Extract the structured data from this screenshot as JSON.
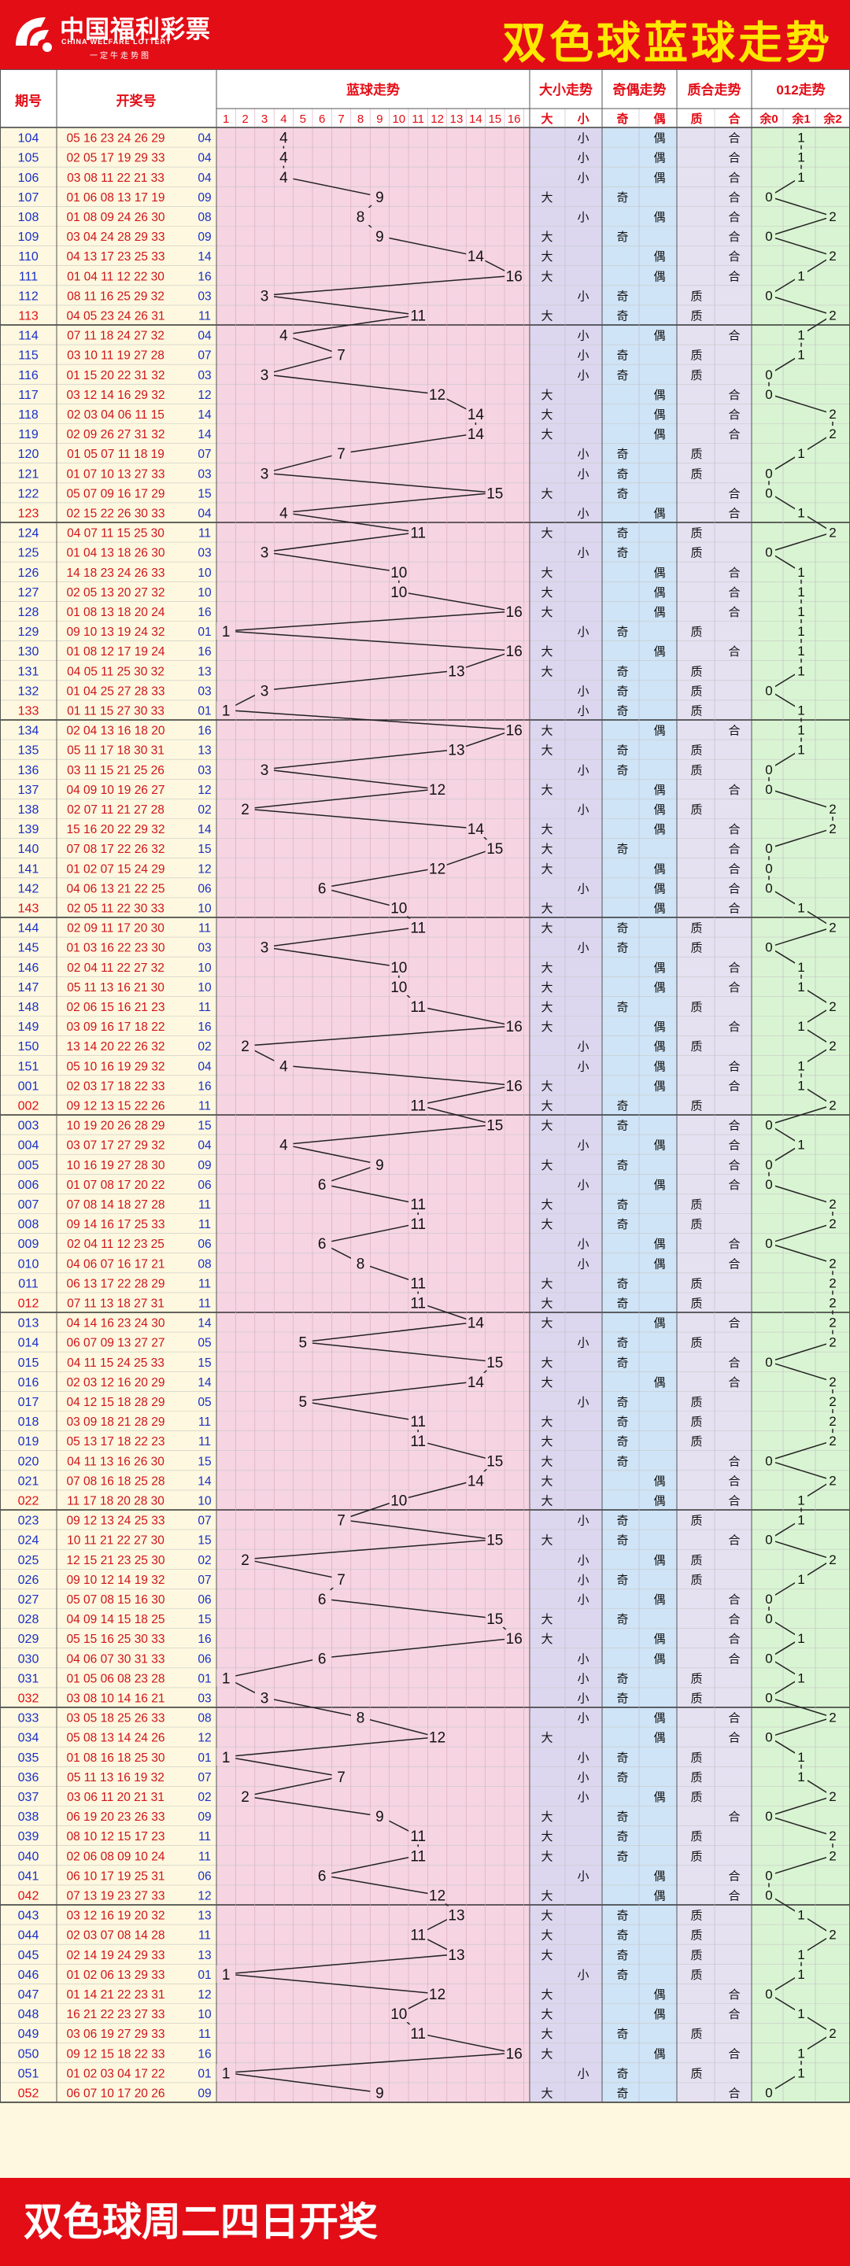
{
  "header": {
    "logo_text": "中国福利彩票",
    "logo_en": "CHINA WELFARE LOTTERY",
    "logo_sub": "一定牛走势图",
    "title": "双色球蓝球走势"
  },
  "footer": {
    "text": "双色球周二四日开奖"
  },
  "columns": {
    "period": "期号",
    "numbers": "开奖号",
    "blue_trend": "蓝球走势",
    "size": "大小走势",
    "parity": "奇偶走势",
    "prime": "质合走势",
    "mod3": "012走势"
  },
  "subheaders": {
    "blue": [
      "1",
      "2",
      "3",
      "4",
      "5",
      "6",
      "7",
      "8",
      "9",
      "10",
      "11",
      "12",
      "13",
      "14",
      "15",
      "16"
    ],
    "size": [
      "大",
      "小"
    ],
    "parity": [
      "奇",
      "偶"
    ],
    "prime": [
      "质",
      "合"
    ],
    "mod3": [
      "余0",
      "余1",
      "余2"
    ]
  },
  "colors": {
    "brand_red": "#e30d16",
    "title_yellow": "#ffe800",
    "blue_numbers": "#1a2fc8",
    "red_numbers": "#d0131a",
    "blue_zone": "#f6d4e2",
    "size_zone": "#dcd7ef",
    "parity_zone": "#cfe4f6",
    "prime_zone": "#e5e1f1",
    "mod3_zone": "#d9f4d2"
  },
  "chart_data": {
    "type": "table",
    "title": "双色球蓝球走势",
    "blue_ball_range": [
      1,
      16
    ],
    "rows": [
      {
        "period": "104",
        "red": "05 16 23 24 26 29",
        "blue": "04",
        "size": "小",
        "parity": "偶",
        "prime": "合",
        "mod3": "1"
      },
      {
        "period": "105",
        "red": "02 05 17 19 29 33",
        "blue": "04",
        "size": "小",
        "parity": "偶",
        "prime": "合",
        "mod3": "1"
      },
      {
        "period": "106",
        "red": "03 08 11 22 21 33",
        "blue": "04",
        "size": "小",
        "parity": "偶",
        "prime": "合",
        "mod3": "1"
      },
      {
        "period": "107",
        "red": "01 06 08 13 17 19",
        "blue": "09",
        "size": "大",
        "parity": "奇",
        "prime": "合",
        "mod3": "0"
      },
      {
        "period": "108",
        "red": "01 08 09 24 26 30",
        "blue": "08",
        "size": "小",
        "parity": "偶",
        "prime": "合",
        "mod3": "2"
      },
      {
        "period": "109",
        "red": "03 04 24 28 29 33",
        "blue": "09",
        "size": "大",
        "parity": "奇",
        "prime": "合",
        "mod3": "0"
      },
      {
        "period": "110",
        "red": "04 13 17 23 25 33",
        "blue": "14",
        "size": "大",
        "parity": "偶",
        "prime": "合",
        "mod3": "2"
      },
      {
        "period": "111",
        "red": "01 04 11 12 22 30",
        "blue": "16",
        "size": "大",
        "parity": "偶",
        "prime": "合",
        "mod3": "1"
      },
      {
        "period": "112",
        "red": "08 11 16 25 29 32",
        "blue": "03",
        "size": "小",
        "parity": "奇",
        "prime": "质",
        "mod3": "0"
      },
      {
        "period": "113",
        "red": "04 05 23 24 26 31",
        "blue": "11",
        "size": "大",
        "parity": "奇",
        "prime": "质",
        "mod3": "2"
      },
      {
        "period": "114",
        "red": "07 11 18 24 27 32",
        "blue": "04",
        "size": "小",
        "parity": "偶",
        "prime": "合",
        "mod3": "1"
      },
      {
        "period": "115",
        "red": "03 10 11 19 27 28",
        "blue": "07",
        "size": "小",
        "parity": "奇",
        "prime": "质",
        "mod3": "1"
      },
      {
        "period": "116",
        "red": "01 15 20 22 31 32",
        "blue": "03",
        "size": "小",
        "parity": "奇",
        "prime": "质",
        "mod3": "0"
      },
      {
        "period": "117",
        "red": "03 12 14 16 29 32",
        "blue": "12",
        "size": "大",
        "parity": "偶",
        "prime": "合",
        "mod3": "0"
      },
      {
        "period": "118",
        "red": "02 03 04 06 11 15",
        "blue": "14",
        "size": "大",
        "parity": "偶",
        "prime": "合",
        "mod3": "2"
      },
      {
        "period": "119",
        "red": "02 09 26 27 31 32",
        "blue": "14",
        "size": "大",
        "parity": "偶",
        "prime": "合",
        "mod3": "2"
      },
      {
        "period": "120",
        "red": "01 05 07 11 18 19",
        "blue": "07",
        "size": "小",
        "parity": "奇",
        "prime": "质",
        "mod3": "1"
      },
      {
        "period": "121",
        "red": "01 07 10 13 27 33",
        "blue": "03",
        "size": "小",
        "parity": "奇",
        "prime": "质",
        "mod3": "0"
      },
      {
        "period": "122",
        "red": "05 07 09 16 17 29",
        "blue": "15",
        "size": "大",
        "parity": "奇",
        "prime": "合",
        "mod3": "0"
      },
      {
        "period": "123",
        "red": "02 15 22 26 30 33",
        "blue": "04",
        "size": "小",
        "parity": "偶",
        "prime": "合",
        "mod3": "1"
      },
      {
        "period": "124",
        "red": "04 07 11 15 25 30",
        "blue": "11",
        "size": "大",
        "parity": "奇",
        "prime": "质",
        "mod3": "2"
      },
      {
        "period": "125",
        "red": "01 04 13 18 26 30",
        "blue": "03",
        "size": "小",
        "parity": "奇",
        "prime": "质",
        "mod3": "0"
      },
      {
        "period": "126",
        "red": "14 18 23 24 26 33",
        "blue": "10",
        "size": "大",
        "parity": "偶",
        "prime": "合",
        "mod3": "1"
      },
      {
        "period": "127",
        "red": "02 05 13 20 27 32",
        "blue": "10",
        "size": "大",
        "parity": "偶",
        "prime": "合",
        "mod3": "1"
      },
      {
        "period": "128",
        "red": "01 08 13 18 20 24",
        "blue": "16",
        "size": "大",
        "parity": "偶",
        "prime": "合",
        "mod3": "1"
      },
      {
        "period": "129",
        "red": "09 10 13 19 24 32",
        "blue": "01",
        "size": "小",
        "parity": "奇",
        "prime": "质",
        "mod3": "1"
      },
      {
        "period": "130",
        "red": "01 08 12 17 19 24",
        "blue": "16",
        "size": "大",
        "parity": "偶",
        "prime": "合",
        "mod3": "1"
      },
      {
        "period": "131",
        "red": "04 05 11 25 30 32",
        "blue": "13",
        "size": "大",
        "parity": "奇",
        "prime": "质",
        "mod3": "1"
      },
      {
        "period": "132",
        "red": "01 04 25 27 28 33",
        "blue": "03",
        "size": "小",
        "parity": "奇",
        "prime": "质",
        "mod3": "0"
      },
      {
        "period": "133",
        "red": "01 11 15 27 30 33",
        "blue": "01",
        "size": "小",
        "parity": "奇",
        "prime": "质",
        "mod3": "1"
      },
      {
        "period": "134",
        "red": "02 04 13 16 18 20",
        "blue": "16",
        "size": "大",
        "parity": "偶",
        "prime": "合",
        "mod3": "1"
      },
      {
        "period": "135",
        "red": "05 11 17 18 30 31",
        "blue": "13",
        "size": "大",
        "parity": "奇",
        "prime": "质",
        "mod3": "1"
      },
      {
        "period": "136",
        "red": "03 11 15 21 25 26",
        "blue": "03",
        "size": "小",
        "parity": "奇",
        "prime": "质",
        "mod3": "0"
      },
      {
        "period": "137",
        "red": "04 09 10 19 26 27",
        "blue": "12",
        "size": "大",
        "parity": "偶",
        "prime": "合",
        "mod3": "0"
      },
      {
        "period": "138",
        "red": "02 07 11 21 27 28",
        "blue": "02",
        "size": "小",
        "parity": "偶",
        "prime": "质",
        "mod3": "2"
      },
      {
        "period": "139",
        "red": "15 16 20 22 29 32",
        "blue": "14",
        "size": "大",
        "parity": "偶",
        "prime": "合",
        "mod3": "2"
      },
      {
        "period": "140",
        "red": "07 08 17 22 26 32",
        "blue": "15",
        "size": "大",
        "parity": "奇",
        "prime": "合",
        "mod3": "0"
      },
      {
        "period": "141",
        "red": "01 02 07 15 24 29",
        "blue": "12",
        "size": "大",
        "parity": "偶",
        "prime": "合",
        "mod3": "0"
      },
      {
        "period": "142",
        "red": "04 06 13 21 22 25",
        "blue": "06",
        "size": "小",
        "parity": "偶",
        "prime": "合",
        "mod3": "0"
      },
      {
        "period": "143",
        "red": "02 05 11 22 30 33",
        "blue": "10",
        "size": "大",
        "parity": "偶",
        "prime": "合",
        "mod3": "1"
      },
      {
        "period": "144",
        "red": "02 09 11 17 20 30",
        "blue": "11",
        "size": "大",
        "parity": "奇",
        "prime": "质",
        "mod3": "2"
      },
      {
        "period": "145",
        "red": "01 03 16 22 23 30",
        "blue": "03",
        "size": "小",
        "parity": "奇",
        "prime": "质",
        "mod3": "0"
      },
      {
        "period": "146",
        "red": "02 04 11 22 27 32",
        "blue": "10",
        "size": "大",
        "parity": "偶",
        "prime": "合",
        "mod3": "1"
      },
      {
        "period": "147",
        "red": "05 11 13 16 21 30",
        "blue": "10",
        "size": "大",
        "parity": "偶",
        "prime": "合",
        "mod3": "1"
      },
      {
        "period": "148",
        "red": "02 06 15 16 21 23",
        "blue": "11",
        "size": "大",
        "parity": "奇",
        "prime": "质",
        "mod3": "2"
      },
      {
        "period": "149",
        "red": "03 09 16 17 18 22",
        "blue": "16",
        "size": "大",
        "parity": "偶",
        "prime": "合",
        "mod3": "1"
      },
      {
        "period": "150",
        "red": "13 14 20 22 26 32",
        "blue": "02",
        "size": "小",
        "parity": "偶",
        "prime": "质",
        "mod3": "2"
      },
      {
        "period": "151",
        "red": "05 10 16 19 29 32",
        "blue": "04",
        "size": "小",
        "parity": "偶",
        "prime": "合",
        "mod3": "1"
      },
      {
        "period": "001",
        "red": "02 03 17 18 22 33",
        "blue": "16",
        "size": "大",
        "parity": "偶",
        "prime": "合",
        "mod3": "1"
      },
      {
        "period": "002",
        "red": "09 12 13 15 22 26",
        "blue": "11",
        "size": "大",
        "parity": "奇",
        "prime": "质",
        "mod3": "2"
      },
      {
        "period": "003",
        "red": "10 19 20 26 28 29",
        "blue": "15",
        "size": "大",
        "parity": "奇",
        "prime": "合",
        "mod3": "0"
      },
      {
        "period": "004",
        "red": "03 07 17 27 29 32",
        "blue": "04",
        "size": "小",
        "parity": "偶",
        "prime": "合",
        "mod3": "1"
      },
      {
        "period": "005",
        "red": "10 16 19 27 28 30",
        "blue": "09",
        "size": "大",
        "parity": "奇",
        "prime": "合",
        "mod3": "0"
      },
      {
        "period": "006",
        "red": "01 07 08 17 20 22",
        "blue": "06",
        "size": "小",
        "parity": "偶",
        "prime": "合",
        "mod3": "0"
      },
      {
        "period": "007",
        "red": "07 08 14 18 27 28",
        "blue": "11",
        "size": "大",
        "parity": "奇",
        "prime": "质",
        "mod3": "2"
      },
      {
        "period": "008",
        "red": "09 14 16 17 25 33",
        "blue": "11",
        "size": "大",
        "parity": "奇",
        "prime": "质",
        "mod3": "2"
      },
      {
        "period": "009",
        "red": "02 04 11 12 23 25",
        "blue": "06",
        "size": "小",
        "parity": "偶",
        "prime": "合",
        "mod3": "0"
      },
      {
        "period": "010",
        "red": "04 06 07 16 17 21",
        "blue": "08",
        "size": "小",
        "parity": "偶",
        "prime": "合",
        "mod3": "2"
      },
      {
        "period": "011",
        "red": "06 13 17 22 28 29",
        "blue": "11",
        "size": "大",
        "parity": "奇",
        "prime": "质",
        "mod3": "2"
      },
      {
        "period": "012",
        "red": "07 11 13 18 27 31",
        "blue": "11",
        "size": "大",
        "parity": "奇",
        "prime": "质",
        "mod3": "2"
      },
      {
        "period": "013",
        "red": "04 14 16 23 24 30",
        "blue": "14",
        "size": "大",
        "parity": "偶",
        "prime": "合",
        "mod3": "2"
      },
      {
        "period": "014",
        "red": "06 07 09 13 27 27",
        "blue": "05",
        "size": "小",
        "parity": "奇",
        "prime": "质",
        "mod3": "2"
      },
      {
        "period": "015",
        "red": "04 11 15 24 25 33",
        "blue": "15",
        "size": "大",
        "parity": "奇",
        "prime": "合",
        "mod3": "0"
      },
      {
        "period": "016",
        "red": "02 03 12 16 20 29",
        "blue": "14",
        "size": "大",
        "parity": "偶",
        "prime": "合",
        "mod3": "2"
      },
      {
        "period": "017",
        "red": "04 12 15 18 28 29",
        "blue": "05",
        "size": "小",
        "parity": "奇",
        "prime": "质",
        "mod3": "2"
      },
      {
        "period": "018",
        "red": "03 09 18 21 28 29",
        "blue": "11",
        "size": "大",
        "parity": "奇",
        "prime": "质",
        "mod3": "2"
      },
      {
        "period": "019",
        "red": "05 13 17 18 22 23",
        "blue": "11",
        "size": "大",
        "parity": "奇",
        "prime": "质",
        "mod3": "2"
      },
      {
        "period": "020",
        "red": "04 11 13 16 26 30",
        "blue": "15",
        "size": "大",
        "parity": "奇",
        "prime": "合",
        "mod3": "0"
      },
      {
        "period": "021",
        "red": "07 08 16 18 25 28",
        "blue": "14",
        "size": "大",
        "parity": "偶",
        "prime": "合",
        "mod3": "2"
      },
      {
        "period": "022",
        "red": "11 17 18 20 28 30",
        "blue": "10",
        "size": "大",
        "parity": "偶",
        "prime": "合",
        "mod3": "1"
      },
      {
        "period": "023",
        "red": "09 12 13 24 25 33",
        "blue": "07",
        "size": "小",
        "parity": "奇",
        "prime": "质",
        "mod3": "1"
      },
      {
        "period": "024",
        "red": "10 11 21 22 27 30",
        "blue": "15",
        "size": "大",
        "parity": "奇",
        "prime": "合",
        "mod3": "0"
      },
      {
        "period": "025",
        "red": "12 15 21 23 25 30",
        "blue": "02",
        "size": "小",
        "parity": "偶",
        "prime": "质",
        "mod3": "2"
      },
      {
        "period": "026",
        "red": "09 10 12 14 19 32",
        "blue": "07",
        "size": "小",
        "parity": "奇",
        "prime": "质",
        "mod3": "1"
      },
      {
        "period": "027",
        "red": "05 07 08 15 16 30",
        "blue": "06",
        "size": "小",
        "parity": "偶",
        "prime": "合",
        "mod3": "0"
      },
      {
        "period": "028",
        "red": "04 09 14 15 18 25",
        "blue": "15",
        "size": "大",
        "parity": "奇",
        "prime": "合",
        "mod3": "0"
      },
      {
        "period": "029",
        "red": "05 15 16 25 30 33",
        "blue": "16",
        "size": "大",
        "parity": "偶",
        "prime": "合",
        "mod3": "1"
      },
      {
        "period": "030",
        "red": "04 06 07 30 31 33",
        "blue": "06",
        "size": "小",
        "parity": "偶",
        "prime": "合",
        "mod3": "0"
      },
      {
        "period": "031",
        "red": "01 05 06 08 23 28",
        "blue": "01",
        "size": "小",
        "parity": "奇",
        "prime": "质",
        "mod3": "1"
      },
      {
        "period": "032",
        "red": "03 08 10 14 16 21",
        "blue": "03",
        "size": "小",
        "parity": "奇",
        "prime": "质",
        "mod3": "0"
      },
      {
        "period": "033",
        "red": "03 05 18 25 26 33",
        "blue": "08",
        "size": "小",
        "parity": "偶",
        "prime": "合",
        "mod3": "2"
      },
      {
        "period": "034",
        "red": "05 08 13 14 24 26",
        "blue": "12",
        "size": "大",
        "parity": "偶",
        "prime": "合",
        "mod3": "0"
      },
      {
        "period": "035",
        "red": "01 08 16 18 25 30",
        "blue": "01",
        "size": "小",
        "parity": "奇",
        "prime": "质",
        "mod3": "1"
      },
      {
        "period": "036",
        "red": "05 11 13 16 19 32",
        "blue": "07",
        "size": "小",
        "parity": "奇",
        "prime": "质",
        "mod3": "1"
      },
      {
        "period": "037",
        "red": "03 06 11 20 21 31",
        "blue": "02",
        "size": "小",
        "parity": "偶",
        "prime": "质",
        "mod3": "2"
      },
      {
        "period": "038",
        "red": "06 19 20 23 26 33",
        "blue": "09",
        "size": "大",
        "parity": "奇",
        "prime": "合",
        "mod3": "0"
      },
      {
        "period": "039",
        "red": "08 10 12 15 17 23",
        "blue": "11",
        "size": "大",
        "parity": "奇",
        "prime": "质",
        "mod3": "2"
      },
      {
        "period": "040",
        "red": "02 06 08 09 10 24",
        "blue": "11",
        "size": "大",
        "parity": "奇",
        "prime": "质",
        "mod3": "2"
      },
      {
        "period": "041",
        "red": "06 10 17 19 25 31",
        "blue": "06",
        "size": "小",
        "parity": "偶",
        "prime": "合",
        "mod3": "0"
      },
      {
        "period": "042",
        "red": "07 13 19 23 27 33",
        "blue": "12",
        "size": "大",
        "parity": "偶",
        "prime": "合",
        "mod3": "0"
      },
      {
        "period": "043",
        "red": "03 12 16 19 20 32",
        "blue": "13",
        "size": "大",
        "parity": "奇",
        "prime": "质",
        "mod3": "1"
      },
      {
        "period": "044",
        "red": "02 03 07 08 14 28",
        "blue": "11",
        "size": "大",
        "parity": "奇",
        "prime": "质",
        "mod3": "2"
      },
      {
        "period": "045",
        "red": "02 14 19 24 29 33",
        "blue": "13",
        "size": "大",
        "parity": "奇",
        "prime": "质",
        "mod3": "1"
      },
      {
        "period": "046",
        "red": "01 02 06 13 29 33",
        "blue": "01",
        "size": "小",
        "parity": "奇",
        "prime": "质",
        "mod3": "1"
      },
      {
        "period": "047",
        "red": "01 14 21 22 23 31",
        "blue": "12",
        "size": "大",
        "parity": "偶",
        "prime": "合",
        "mod3": "0"
      },
      {
        "period": "048",
        "red": "16 21 22 23 27 33",
        "blue": "10",
        "size": "大",
        "parity": "偶",
        "prime": "合",
        "mod3": "1"
      },
      {
        "period": "049",
        "red": "03 06 19 27 29 33",
        "blue": "11",
        "size": "大",
        "parity": "奇",
        "prime": "质",
        "mod3": "2"
      },
      {
        "period": "050",
        "red": "09 12 15 18 22 33",
        "blue": "16",
        "size": "大",
        "parity": "偶",
        "prime": "合",
        "mod3": "1"
      },
      {
        "period": "051",
        "red": "01 02 03 04 17 22",
        "blue": "01",
        "size": "小",
        "parity": "奇",
        "prime": "质",
        "mod3": "1"
      },
      {
        "period": "052",
        "red": "06 07 10 17 20 26",
        "blue": "09",
        "size": "大",
        "parity": "奇",
        "prime": "合",
        "mod3": "0"
      }
    ]
  }
}
